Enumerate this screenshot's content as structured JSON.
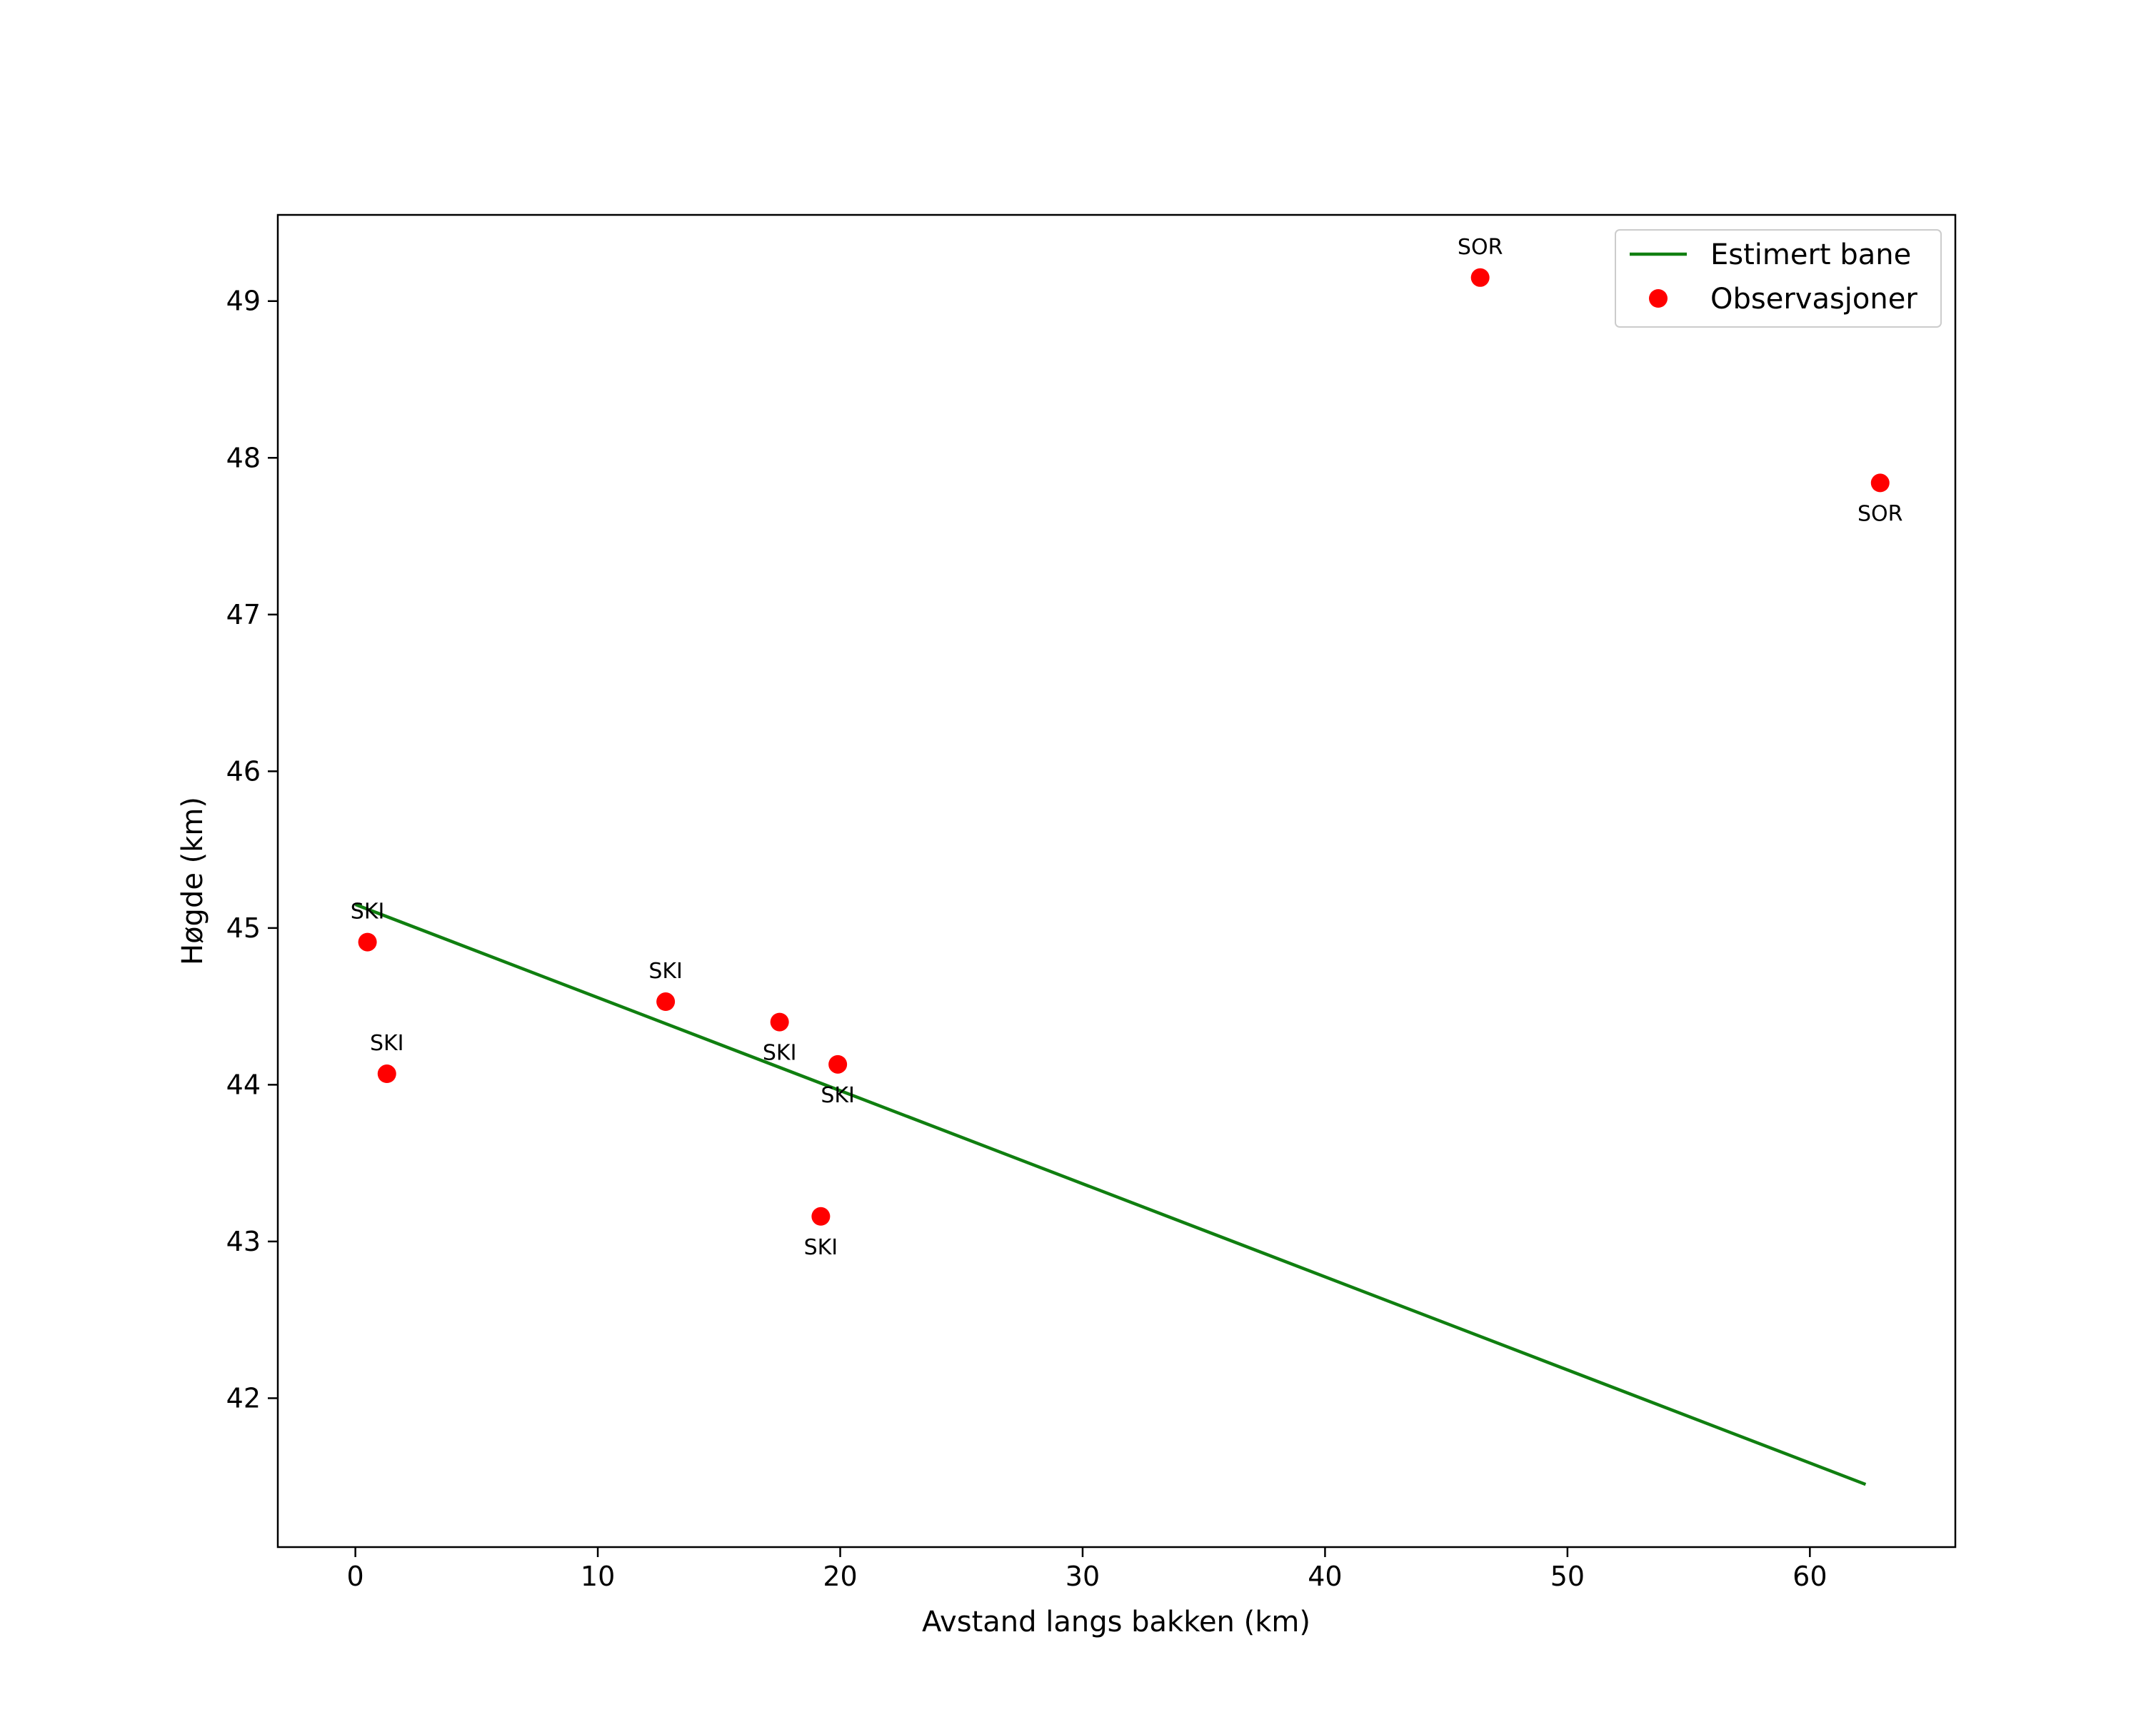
{
  "chart_data": {
    "type": "line+scatter",
    "title": "",
    "xlabel": "Avstand langs bakken (km)",
    "ylabel": "Høgde (km)",
    "xlim": [
      -3.2,
      66
    ],
    "ylim": [
      41.05,
      49.55
    ],
    "xticks": [
      0,
      10,
      20,
      30,
      40,
      50,
      60
    ],
    "yticks": [
      42,
      43,
      44,
      45,
      46,
      47,
      48,
      49
    ],
    "grid": false,
    "legend_position": "top-right",
    "colors": {
      "line": "#107f10",
      "points": "#ff0000"
    },
    "series": [
      {
        "name": "Estimert bane",
        "kind": "line",
        "x": [
          0,
          62.3
        ],
        "y": [
          45.15,
          41.45
        ]
      },
      {
        "name": "Observasjoner",
        "kind": "scatter",
        "points": [
          {
            "x": 0.5,
            "y": 44.91,
            "label": "SKI",
            "label_pos": "above"
          },
          {
            "x": 1.3,
            "y": 44.07,
            "label": "SKI",
            "label_pos": "above"
          },
          {
            "x": 12.8,
            "y": 44.53,
            "label": "SKI",
            "label_pos": "above"
          },
          {
            "x": 17.5,
            "y": 44.4,
            "label": "SKI",
            "label_pos": "below"
          },
          {
            "x": 19.9,
            "y": 44.13,
            "label": "SKI",
            "label_pos": "below"
          },
          {
            "x": 19.2,
            "y": 43.16,
            "label": "SKI",
            "label_pos": "below"
          },
          {
            "x": 46.4,
            "y": 49.15,
            "label": "SOR",
            "label_pos": "above"
          },
          {
            "x": 62.9,
            "y": 47.84,
            "label": "SOR",
            "label_pos": "below"
          }
        ]
      }
    ]
  }
}
